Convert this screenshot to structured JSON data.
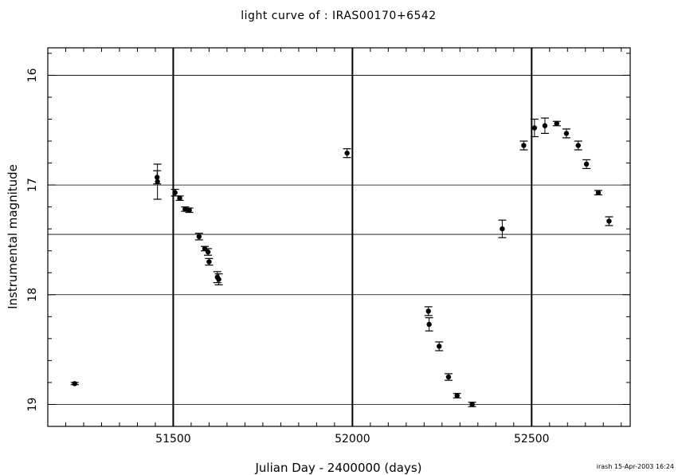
{
  "chart_data": {
    "type": "scatter",
    "title": "light curve of : IRAS00170+6542",
    "xlabel": "Julian Day - 2400000 (days)",
    "ylabel": "Instrumental magnitude",
    "xlim": [
      51150,
      52775
    ],
    "ylim": [
      19.2,
      15.75
    ],
    "y_inverted": true,
    "x_ticks": [
      51500,
      52000,
      52500
    ],
    "y_ticks": [
      16,
      17,
      18,
      19
    ],
    "vertical_lines": [
      51500,
      52000,
      52500
    ],
    "horizontal_lines": [
      16.0,
      17.0,
      17.45,
      18.0,
      19.0
    ],
    "grid": false,
    "marker_color": "#000000",
    "points": [
      {
        "x": 51225,
        "y": 18.81,
        "err": 0.01
      },
      {
        "x": 51455,
        "y": 16.93,
        "err": 0.06
      },
      {
        "x": 51456,
        "y": 16.97,
        "err": 0.16
      },
      {
        "x": 51505,
        "y": 17.07,
        "err": 0.03
      },
      {
        "x": 51518,
        "y": 17.12,
        "err": 0.02
      },
      {
        "x": 51533,
        "y": 17.22,
        "err": 0.02
      },
      {
        "x": 51545,
        "y": 17.23,
        "err": 0.02
      },
      {
        "x": 51572,
        "y": 17.47,
        "err": 0.03
      },
      {
        "x": 51588,
        "y": 17.58,
        "err": 0.02
      },
      {
        "x": 51597,
        "y": 17.61,
        "err": 0.03
      },
      {
        "x": 51600,
        "y": 17.7,
        "err": 0.03
      },
      {
        "x": 51623,
        "y": 17.84,
        "err": 0.05
      },
      {
        "x": 51627,
        "y": 17.86,
        "err": 0.05
      },
      {
        "x": 51985,
        "y": 16.71,
        "err": 0.04
      },
      {
        "x": 52212,
        "y": 18.15,
        "err": 0.04
      },
      {
        "x": 52214,
        "y": 18.27,
        "err": 0.06
      },
      {
        "x": 52242,
        "y": 18.47,
        "err": 0.04
      },
      {
        "x": 52268,
        "y": 18.75,
        "err": 0.03
      },
      {
        "x": 52292,
        "y": 18.92,
        "err": 0.02
      },
      {
        "x": 52334,
        "y": 19.0,
        "err": 0.02
      },
      {
        "x": 52418,
        "y": 17.4,
        "err": 0.08
      },
      {
        "x": 52478,
        "y": 16.64,
        "err": 0.04
      },
      {
        "x": 52508,
        "y": 16.48,
        "err": 0.08
      },
      {
        "x": 52537,
        "y": 16.46,
        "err": 0.07
      },
      {
        "x": 52570,
        "y": 16.44,
        "err": 0.02
      },
      {
        "x": 52597,
        "y": 16.53,
        "err": 0.04
      },
      {
        "x": 52630,
        "y": 16.64,
        "err": 0.04
      },
      {
        "x": 52653,
        "y": 16.81,
        "err": 0.04
      },
      {
        "x": 52686,
        "y": 17.07,
        "err": 0.02
      },
      {
        "x": 52716,
        "y": 17.33,
        "err": 0.04
      }
    ]
  },
  "footer": {
    "note": "irash 15-Apr-2003 16:24"
  }
}
